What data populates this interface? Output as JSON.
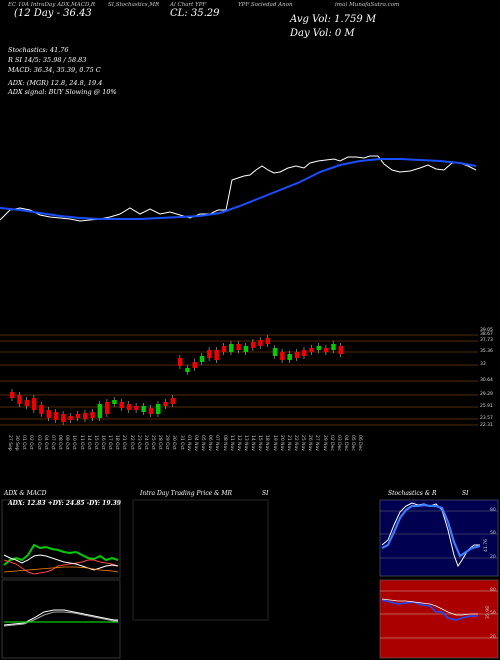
{
  "header": {
    "col1": "EC 10A IntraDay ADX,MACD,R",
    "col2": "SI,Stochastics,MR",
    "col3": "Al Chart YPF",
    "col4": "YPF Sociedad Anon",
    "col5": "ima) MunafaSutra.com",
    "close": "CL: 35.29",
    "day_range": "(12  Day - 36.43",
    "avg_vol": "Avg Vol: 1.759  M",
    "day_vol": "Day Vol: 0   M"
  },
  "indicators": {
    "stoch_title": "Stochastics: 41.76",
    "rsi_line": "R           SI 14/5: 35.98  / 58.83",
    "macd_line": "MACD: 36.34,  35.39,  0.75  C",
    "adx_line": "ADX:                   (MGR) 12.8,  24.8,  19.4",
    "adx_signal": "ADX  signal:                 BUY Slowing @ 10%"
  },
  "price_levels": [
    "38.67",
    "37.73",
    "35.36",
    "33",
    "30.64",
    "29.29",
    "25.91",
    "23.57",
    "22.31"
  ],
  "top_level": "39.05",
  "dates": [
    "27 Sep",
    "30 Sep",
    "01 Oct",
    "02 Oct",
    "03 Oct",
    "04 Oct",
    "07 Oct",
    "08 Oct",
    "09 Oct",
    "10 Oct",
    "11 Oct",
    "14 Oct",
    "15 Oct",
    "16 Oct",
    "17 Oct",
    "18 Oct",
    "21 Oct",
    "22 Oct",
    "23 Oct",
    "24 Oct",
    "25 Oct",
    "28 Oct",
    "29 Oct",
    "30 Oct",
    "31 Oct",
    "01 Nov",
    "04 Nov",
    "05 Nov",
    "06 Nov",
    "07 Nov",
    "08 Nov",
    "11 Nov",
    "12 Nov",
    "13 Nov",
    "14 Nov",
    "15 Nov",
    "18 Nov",
    "19 Nov",
    "20 Nov",
    "21 Nov",
    "22 Nov",
    "25 Nov",
    "26 Nov",
    "27 Nov",
    "29 Nov",
    "02 Dec",
    "03 Dec",
    "04 Dec",
    "05 Dec",
    "06 Dec"
  ],
  "panels": {
    "adx_title": "ADX  & MACD",
    "adx_values": "ADX: 12.83  +DY: 24.85  -DY: 19.39",
    "intra_title": "Intra Day Trading Price  & MR",
    "intra_si": "SI",
    "stoch_title": "Stochastics & R",
    "stoch_si": "SI"
  },
  "stoch_levels": [
    "80",
    "50",
    "20"
  ],
  "stoch_value": "41.76",
  "rsi_levels": [
    "80",
    "50",
    "20"
  ],
  "rsi_value": "35.98",
  "colors": {
    "sma": "#1a4fff",
    "up": "#00cc00",
    "down": "#ee0000",
    "rsi_bg": "#aa0000",
    "stoch_bg": "#000050"
  }
}
